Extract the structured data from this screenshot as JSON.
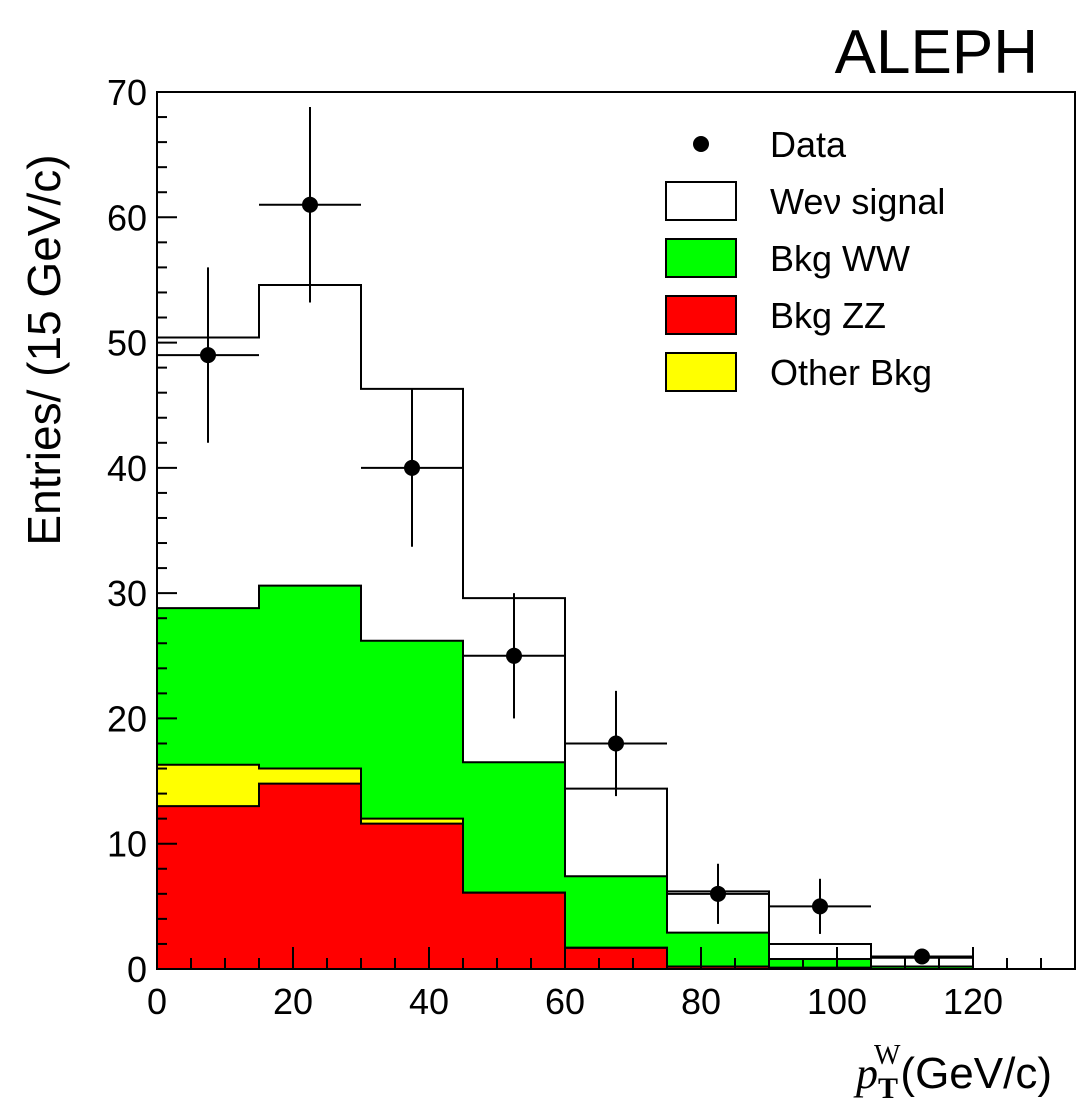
{
  "chart_data": {
    "type": "bar",
    "title": "ALEPH",
    "ylabel": "Entries/ (15 GeV/c)",
    "xlabel": {
      "symbol": "p",
      "subscript": "T",
      "superscript": "W",
      "units": "(GeV/c)"
    },
    "xlim": [
      0,
      135
    ],
    "ylim": [
      0,
      70
    ],
    "bin_edges": [
      0,
      15,
      30,
      45,
      60,
      75,
      90,
      105,
      120
    ],
    "x_tick_labels": [
      "0",
      "20",
      "40",
      "60",
      "80",
      "100",
      "120"
    ],
    "y_tick_labels": [
      "0",
      "10",
      "20",
      "30",
      "40",
      "50",
      "60",
      "70"
    ],
    "stack": [
      {
        "name": "Bkg ZZ",
        "color": "#ff0000",
        "cumulative": [
          13.0,
          14.8,
          11.6,
          6.1,
          1.7,
          0.2,
          0.1,
          0.0
        ]
      },
      {
        "name": "Other Bkg",
        "color": "#ffff00",
        "cumulative": [
          16.3,
          16.0,
          12.0,
          6.1,
          1.7,
          0.2,
          0.1,
          0.0
        ]
      },
      {
        "name": "Bkg WW",
        "color": "#00ff00",
        "cumulative": [
          28.8,
          30.6,
          26.2,
          16.5,
          7.4,
          2.9,
          0.8,
          0.2
        ]
      },
      {
        "name": "Wev signal",
        "color": "#ffffff",
        "cumulative": [
          50.4,
          54.6,
          46.3,
          29.6,
          14.4,
          6.2,
          2.0,
          0.9
        ]
      }
    ],
    "data_points": {
      "name": "Data",
      "x": [
        7.5,
        22.5,
        37.5,
        52.5,
        67.5,
        82.5,
        97.5,
        112.5
      ],
      "y": [
        49,
        61,
        40,
        25,
        18,
        6,
        5,
        1
      ],
      "y_err_up": [
        7.0,
        7.8,
        6.3,
        5.0,
        4.2,
        2.4,
        2.2,
        0.0
      ],
      "y_err_down": [
        7.0,
        7.8,
        6.3,
        5.0,
        4.2,
        2.4,
        2.2,
        0.0
      ],
      "x_err": 7.5
    },
    "legend": {
      "placement": "top-right",
      "entries": [
        {
          "label": "Data",
          "marker": "point"
        },
        {
          "label": "Weν signal",
          "marker": "box",
          "color": "#ffffff"
        },
        {
          "label": "Bkg WW",
          "marker": "box",
          "color": "#00ff00"
        },
        {
          "label": "Bkg ZZ",
          "marker": "box",
          "color": "#ff0000"
        },
        {
          "label": "Other Bkg",
          "marker": "box",
          "color": "#ffff00"
        }
      ]
    },
    "grid": false
  }
}
